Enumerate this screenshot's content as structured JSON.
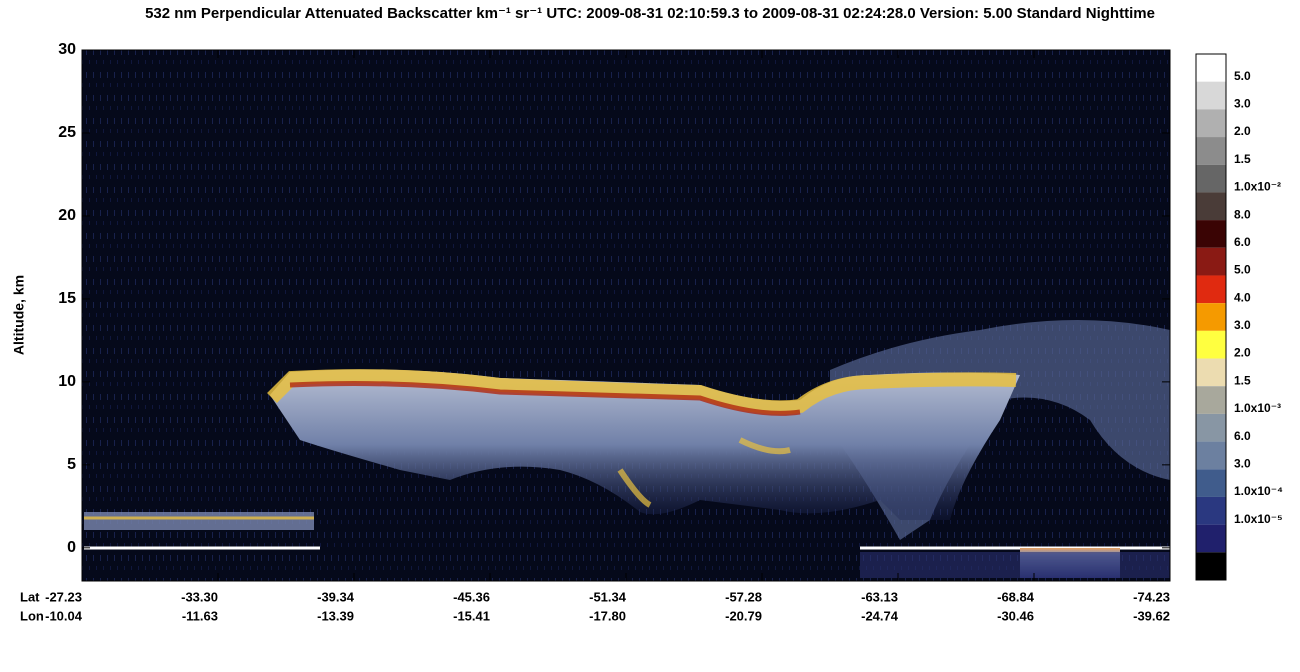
{
  "chart_data": {
    "type": "curtain",
    "title": "532 nm Perpendicular Attenuated Backscatter km⁻¹ sr⁻¹  UTC: 2009-08-31 02:10:59.3 to 2009-08-31 02:24:28.0  Version: 5.00 Standard Nighttime",
    "y_label": "Altitude, km",
    "ylim": [
      -2,
      30
    ],
    "yticks": [
      0,
      5,
      10,
      15,
      20,
      25,
      30
    ],
    "x_row_labels": [
      "Lat",
      "Lon"
    ],
    "lat": [
      "-27.23",
      "-33.30",
      "-39.34",
      "-45.36",
      "-51.34",
      "-57.28",
      "-63.13",
      "-68.84",
      "-74.23"
    ],
    "lon": [
      "-10.04",
      "-11.63",
      "-13.39",
      "-15.41",
      "-17.80",
      "-20.79",
      "-24.74",
      "-30.46",
      "-39.62"
    ],
    "colorbar": {
      "colors": [
        "#ffffff",
        "#d8d8d8",
        "#b0b0b0",
        "#8c8c8c",
        "#666666",
        "#4a3c38",
        "#3a0404",
        "#8a1a14",
        "#e02a10",
        "#f59a00",
        "#ffff40",
        "#ecdcb0",
        "#a8a89c",
        "#8896a4",
        "#6c80a0",
        "#405c8c",
        "#2a3880",
        "#20206c",
        "#000000"
      ],
      "labels": [
        "5.0",
        "3.0",
        "2.0",
        "1.5",
        "1.0x10⁻²",
        "8.0",
        "6.0",
        "5.0",
        "4.0",
        "3.0",
        "2.0",
        "1.5",
        "1.0x10⁻³",
        "6.0",
        "3.0",
        "1.0x10⁻⁴",
        "1.0x10⁻⁵"
      ]
    }
  }
}
